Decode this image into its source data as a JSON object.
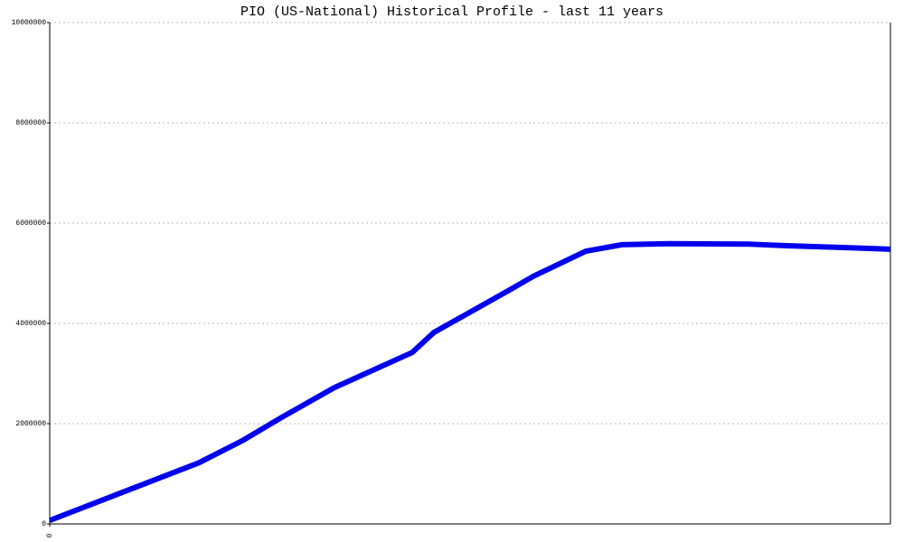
{
  "chart_data": {
    "type": "line",
    "title": "PIO (US-National) Historical Profile - last 11 years",
    "x": [
      0,
      165,
      213,
      257,
      315,
      401,
      425,
      510,
      535,
      593,
      633,
      685,
      775,
      815,
      885,
      930
    ],
    "series": [
      {
        "color": "#0000ee",
        "values": [
          70000,
          1220000,
          1660000,
          2130000,
          2720000,
          3420000,
          3820000,
          4680000,
          4940000,
          5440000,
          5570000,
          5590000,
          5580000,
          5550000,
          5510000,
          5480000
        ]
      }
    ],
    "xlim": [
      0,
      930
    ],
    "xticks": [
      0
    ],
    "ylim": [
      0,
      10000000
    ],
    "yticks": [
      0,
      2000000,
      4000000,
      6000000,
      8000000,
      10000000
    ],
    "grid": true
  }
}
